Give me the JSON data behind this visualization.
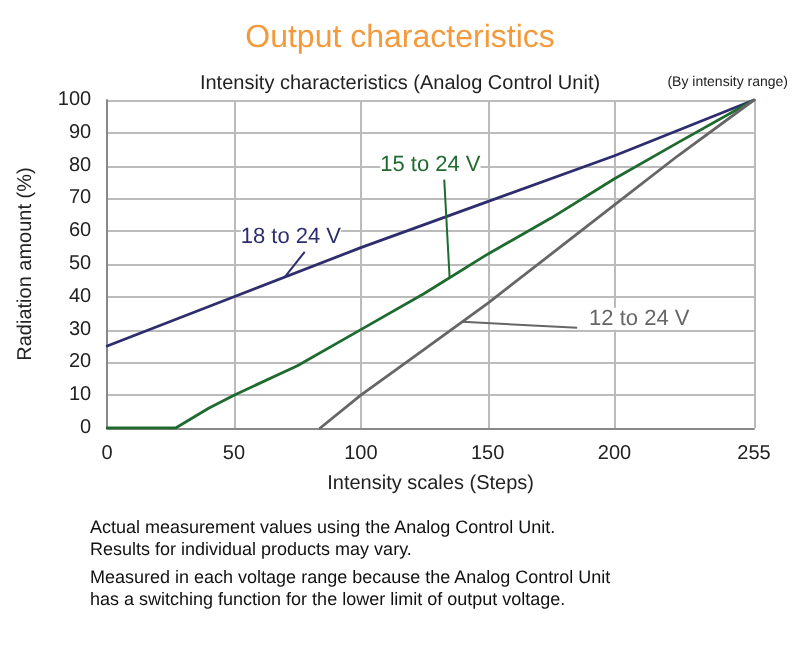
{
  "chart_data": {
    "type": "line",
    "title": "Output characteristics",
    "subtitle": "Intensity characteristics (Analog Control Unit)",
    "xlabel": "Intensity scales (Steps)",
    "ylabel": "Radiation amount (%)",
    "annotations": [
      "(By intensity range)",
      "Actual measurement values using the Analog Control Unit.\nResults for individual products may vary.",
      "Measured in each voltage range because the Analog Control Unit\nhas a switching function for the lower limit of output voltage."
    ],
    "series": [
      {
        "name": "18 to 24 V",
        "color": "#2e2e6e",
        "x": [
          0,
          50,
          100,
          150,
          200,
          255
        ],
        "values": [
          25,
          40,
          55,
          69,
          83,
          100
        ]
      },
      {
        "name": "15 to 24 V",
        "color": "#1f6b2f",
        "x": [
          0,
          27,
          40,
          50,
          75,
          100,
          125,
          150,
          175,
          200,
          225,
          255
        ],
        "values": [
          0,
          0,
          6,
          10,
          19,
          30,
          41,
          53,
          64,
          76,
          87,
          100
        ]
      },
      {
        "name": "12 to 24 V",
        "color": "#666666",
        "x": [
          84,
          100,
          125,
          150,
          175,
          200,
          225,
          255
        ],
        "values": [
          0,
          10,
          24,
          38,
          53,
          68,
          83,
          100
        ]
      }
    ],
    "xlim": [
      0,
      255
    ],
    "xticks": [
      0,
      50,
      100,
      150,
      200,
      255
    ],
    "ylim": [
      0,
      100
    ],
    "yticks": [
      0,
      10,
      20,
      30,
      40,
      50,
      60,
      70,
      80,
      90,
      100
    ],
    "grid": true,
    "marker": "none",
    "line_style": "solid",
    "legend": false
  }
}
